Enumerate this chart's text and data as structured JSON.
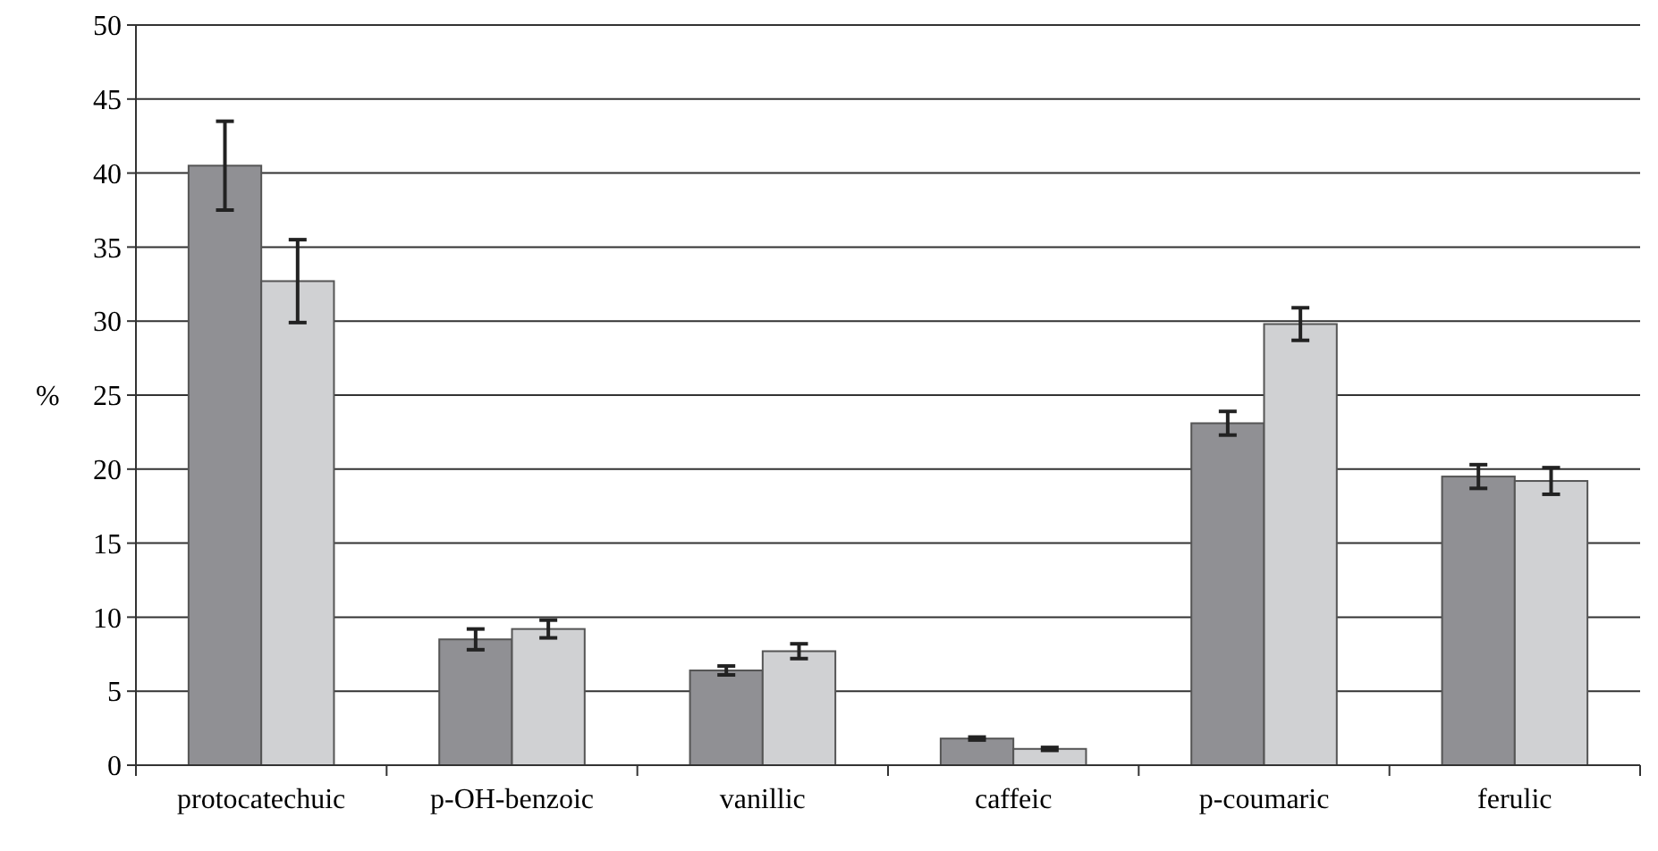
{
  "chart_data": {
    "type": "bar",
    "ylabel": "%",
    "categories": [
      "protocatechuic",
      "p-OH-benzoic",
      "vanillic",
      "caffeic",
      "p-coumaric",
      "ferulic"
    ],
    "series": [
      {
        "color": "#909094",
        "values": [
          40.5,
          8.5,
          6.4,
          1.8,
          23.1,
          19.5
        ],
        "errors": [
          3,
          0.7,
          0.3,
          0.1,
          0.8,
          0.8
        ]
      },
      {
        "color": "#d0d1d3",
        "values": [
          32.7,
          9.2,
          7.7,
          1.1,
          29.8,
          19.2
        ],
        "errors": [
          2.8,
          0.6,
          0.5,
          0.1,
          1.1,
          0.9
        ]
      }
    ],
    "ylim": [
      0,
      50
    ],
    "yticks": [
      0,
      5,
      10,
      15,
      20,
      25,
      30,
      35,
      40,
      45,
      50
    ],
    "grid": "y"
  }
}
